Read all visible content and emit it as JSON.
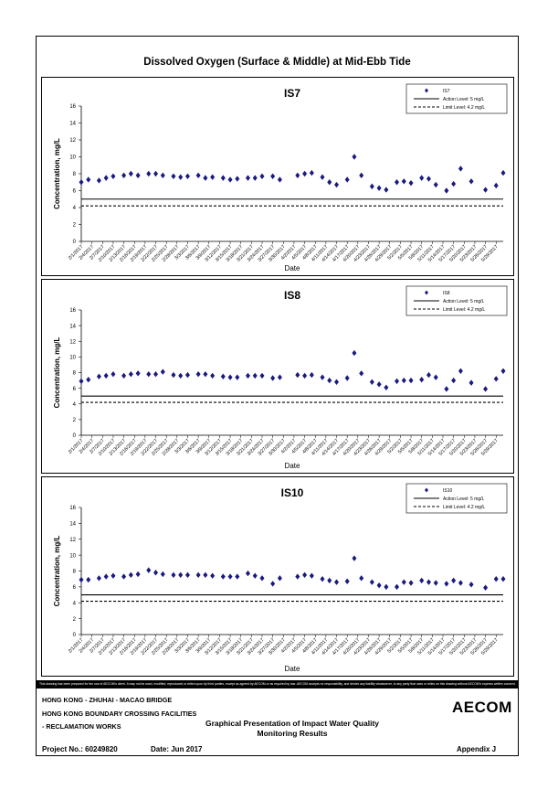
{
  "page_title": "Dissolved Oxygen (Surface & Middle) at Mid-Ebb Tide",
  "disclaimer": "This drawing has been prepared for the use of AECOM's client. It may not be used, modified, reproduced or relied upon by third parties, except as agreed by AECOM or as required by law. AECOM accepts no responsibility, and denies any liability whatsoever, to any party that uses or relies on this drawing without AECOM's express written consent.",
  "footer": {
    "line1": "HONG KONG - ZHUHAI - MACAO BRIDGE",
    "line2": "HONG KONG BOUNDARY CROSSING FACILITIES",
    "line3": "- RECLAMATION WORKS",
    "center_line1": "Graphical Presentation of Impact Water Quality",
    "center_line2": "Monitoring Results",
    "logo": "AECOM",
    "project": "Project No.: 60249820",
    "date": "Date: Jun 2017",
    "appendix": "Appendix J"
  },
  "colors": {
    "marker": "#1a1a80",
    "line": "#000000"
  },
  "chart_data": [
    {
      "type": "scatter",
      "title": "IS7",
      "xlabel": "Date",
      "ylabel": "Concentration, mg/L",
      "ylim": [
        0,
        16
      ],
      "yticks": [
        0,
        2,
        4,
        6,
        8,
        10,
        12,
        14,
        16
      ],
      "xlim": [
        "2017-02-01",
        "2017-05-31"
      ],
      "xtick_labels": [
        "2/1/2017",
        "2/4/2017",
        "2/7/2017",
        "2/10/2017",
        "2/13/2017",
        "2/16/2017",
        "2/19/2017",
        "2/22/2017",
        "2/25/2017",
        "2/28/2017",
        "3/3/2017",
        "3/6/2017",
        "3/9/2017",
        "3/12/2017",
        "3/15/2017",
        "3/18/2017",
        "3/21/2017",
        "3/24/2017",
        "3/27/2017",
        "3/30/2017",
        "4/2/2017",
        "4/5/2017",
        "4/8/2017",
        "4/11/2017",
        "4/14/2017",
        "4/17/2017",
        "4/20/2017",
        "4/23/2017",
        "4/26/2017",
        "4/29/2017",
        "5/2/2017",
        "5/5/2017",
        "5/8/2017",
        "5/11/2017",
        "5/14/2017",
        "5/17/2017",
        "5/20/2017",
        "5/23/2017",
        "5/26/2017",
        "5/29/2017"
      ],
      "series": [
        {
          "name": "IS7",
          "kind": "scatter",
          "points": [
            [
              "2017-02-01",
              7.0
            ],
            [
              "2017-02-03",
              7.3
            ],
            [
              "2017-02-06",
              7.2
            ],
            [
              "2017-02-08",
              7.5
            ],
            [
              "2017-02-10",
              7.7
            ],
            [
              "2017-02-13",
              7.8
            ],
            [
              "2017-02-15",
              8.0
            ],
            [
              "2017-02-17",
              7.8
            ],
            [
              "2017-02-20",
              8.0
            ],
            [
              "2017-02-22",
              8.0
            ],
            [
              "2017-02-24",
              7.8
            ],
            [
              "2017-02-27",
              7.7
            ],
            [
              "2017-03-01",
              7.6
            ],
            [
              "2017-03-03",
              7.7
            ],
            [
              "2017-03-06",
              7.8
            ],
            [
              "2017-03-08",
              7.5
            ],
            [
              "2017-03-10",
              7.6
            ],
            [
              "2017-03-13",
              7.5
            ],
            [
              "2017-03-15",
              7.3
            ],
            [
              "2017-03-17",
              7.4
            ],
            [
              "2017-03-20",
              7.5
            ],
            [
              "2017-03-22",
              7.5
            ],
            [
              "2017-03-24",
              7.7
            ],
            [
              "2017-03-27",
              7.7
            ],
            [
              "2017-03-29",
              7.3
            ],
            [
              "2017-04-03",
              7.8
            ],
            [
              "2017-04-05",
              8.0
            ],
            [
              "2017-04-07",
              8.1
            ],
            [
              "2017-04-10",
              7.6
            ],
            [
              "2017-04-12",
              7.0
            ],
            [
              "2017-04-14",
              6.7
            ],
            [
              "2017-04-17",
              7.3
            ],
            [
              "2017-04-19",
              10.0
            ],
            [
              "2017-04-21",
              7.8
            ],
            [
              "2017-04-24",
              6.5
            ],
            [
              "2017-04-26",
              6.3
            ],
            [
              "2017-04-28",
              6.1
            ],
            [
              "2017-05-01",
              7.0
            ],
            [
              "2017-05-03",
              7.1
            ],
            [
              "2017-05-05",
              6.9
            ],
            [
              "2017-05-08",
              7.5
            ],
            [
              "2017-05-10",
              7.4
            ],
            [
              "2017-05-12",
              6.7
            ],
            [
              "2017-05-15",
              6.0
            ],
            [
              "2017-05-17",
              6.8
            ],
            [
              "2017-05-19",
              8.6
            ],
            [
              "2017-05-22",
              7.1
            ],
            [
              "2017-05-26",
              6.1
            ],
            [
              "2017-05-29",
              6.6
            ],
            [
              "2017-05-31",
              8.1
            ]
          ]
        },
        {
          "name": "Action Level: 5 mg/L",
          "kind": "hline",
          "value": 5,
          "dash": "solid"
        },
        {
          "name": "Limit Level: 4.2 mg/L",
          "kind": "hline",
          "value": 4.2,
          "dash": "dashed"
        }
      ],
      "legend_placement": "top-right"
    },
    {
      "type": "scatter",
      "title": "IS8",
      "xlabel": "Date",
      "ylabel": "Concentration, mg/L",
      "ylim": [
        0,
        16
      ],
      "yticks": [
        0,
        2,
        4,
        6,
        8,
        10,
        12,
        14,
        16
      ],
      "xlim": [
        "2017-02-01",
        "2017-05-31"
      ],
      "xtick_labels": [
        "2/1/2017",
        "2/4/2017",
        "2/7/2017",
        "2/10/2017",
        "2/13/2017",
        "2/16/2017",
        "2/19/2017",
        "2/22/2017",
        "2/25/2017",
        "2/28/2017",
        "3/3/2017",
        "3/6/2017",
        "3/9/2017",
        "3/12/2017",
        "3/15/2017",
        "3/18/2017",
        "3/21/2017",
        "3/24/2017",
        "3/27/2017",
        "3/30/2017",
        "4/2/2017",
        "4/5/2017",
        "4/8/2017",
        "4/11/2017",
        "4/14/2017",
        "4/17/2017",
        "4/20/2017",
        "4/23/2017",
        "4/26/2017",
        "4/29/2017",
        "5/2/2017",
        "5/5/2017",
        "5/8/2017",
        "5/11/2017",
        "5/14/2017",
        "5/17/2017",
        "5/20/2017",
        "5/23/2017",
        "5/26/2017",
        "5/29/2017"
      ],
      "series": [
        {
          "name": "IS8",
          "kind": "scatter",
          "points": [
            [
              "2017-02-01",
              6.9
            ],
            [
              "2017-02-03",
              7.1
            ],
            [
              "2017-02-06",
              7.5
            ],
            [
              "2017-02-08",
              7.6
            ],
            [
              "2017-02-10",
              7.8
            ],
            [
              "2017-02-13",
              7.6
            ],
            [
              "2017-02-15",
              7.8
            ],
            [
              "2017-02-17",
              7.9
            ],
            [
              "2017-02-20",
              7.8
            ],
            [
              "2017-02-22",
              7.8
            ],
            [
              "2017-02-24",
              8.1
            ],
            [
              "2017-02-27",
              7.7
            ],
            [
              "2017-03-01",
              7.6
            ],
            [
              "2017-03-03",
              7.7
            ],
            [
              "2017-03-06",
              7.8
            ],
            [
              "2017-03-08",
              7.8
            ],
            [
              "2017-03-10",
              7.6
            ],
            [
              "2017-03-13",
              7.5
            ],
            [
              "2017-03-15",
              7.4
            ],
            [
              "2017-03-17",
              7.4
            ],
            [
              "2017-03-20",
              7.6
            ],
            [
              "2017-03-22",
              7.6
            ],
            [
              "2017-03-24",
              7.6
            ],
            [
              "2017-03-27",
              7.3
            ],
            [
              "2017-03-29",
              7.4
            ],
            [
              "2017-04-03",
              7.7
            ],
            [
              "2017-04-05",
              7.6
            ],
            [
              "2017-04-07",
              7.7
            ],
            [
              "2017-04-10",
              7.4
            ],
            [
              "2017-04-12",
              7.0
            ],
            [
              "2017-04-14",
              6.8
            ],
            [
              "2017-04-17",
              7.3
            ],
            [
              "2017-04-19",
              10.5
            ],
            [
              "2017-04-21",
              7.9
            ],
            [
              "2017-04-24",
              6.8
            ],
            [
              "2017-04-26",
              6.5
            ],
            [
              "2017-04-28",
              6.1
            ],
            [
              "2017-05-01",
              6.9
            ],
            [
              "2017-05-03",
              7.0
            ],
            [
              "2017-05-05",
              7.0
            ],
            [
              "2017-05-08",
              7.1
            ],
            [
              "2017-05-10",
              7.7
            ],
            [
              "2017-05-12",
              7.4
            ],
            [
              "2017-05-15",
              5.9
            ],
            [
              "2017-05-17",
              7.0
            ],
            [
              "2017-05-19",
              8.2
            ],
            [
              "2017-05-22",
              6.7
            ],
            [
              "2017-05-26",
              5.9
            ],
            [
              "2017-05-29",
              7.2
            ],
            [
              "2017-05-31",
              8.2
            ]
          ]
        },
        {
          "name": "Action Level: 5 mg/L",
          "kind": "hline",
          "value": 5,
          "dash": "solid"
        },
        {
          "name": "Limit Level: 4.2 mg/L",
          "kind": "hline",
          "value": 4.2,
          "dash": "dashed"
        }
      ],
      "legend_placement": "top-right"
    },
    {
      "type": "scatter",
      "title": "IS10",
      "xlabel": "Date",
      "ylabel": "Concentration, mg/L",
      "ylim": [
        0,
        16
      ],
      "yticks": [
        0,
        2,
        4,
        6,
        8,
        10,
        12,
        14,
        16
      ],
      "xlim": [
        "2017-02-01",
        "2017-05-31"
      ],
      "xtick_labels": [
        "2/1/2017",
        "2/4/2017",
        "2/7/2017",
        "2/10/2017",
        "2/13/2017",
        "2/16/2017",
        "2/19/2017",
        "2/22/2017",
        "2/25/2017",
        "2/28/2017",
        "3/3/2017",
        "3/6/2017",
        "3/9/2017",
        "3/12/2017",
        "3/15/2017",
        "3/18/2017",
        "3/21/2017",
        "3/24/2017",
        "3/27/2017",
        "3/30/2017",
        "4/2/2017",
        "4/5/2017",
        "4/8/2017",
        "4/11/2017",
        "4/14/2017",
        "4/17/2017",
        "4/20/2017",
        "4/23/2017",
        "4/26/2017",
        "4/29/2017",
        "5/2/2017",
        "5/5/2017",
        "5/8/2017",
        "5/11/2017",
        "5/14/2017",
        "5/17/2017",
        "5/20/2017",
        "5/23/2017",
        "5/26/2017",
        "5/29/2017"
      ],
      "series": [
        {
          "name": "IS10",
          "kind": "scatter",
          "points": [
            [
              "2017-02-01",
              6.9
            ],
            [
              "2017-02-03",
              6.9
            ],
            [
              "2017-02-06",
              7.1
            ],
            [
              "2017-02-08",
              7.3
            ],
            [
              "2017-02-10",
              7.4
            ],
            [
              "2017-02-13",
              7.3
            ],
            [
              "2017-02-15",
              7.5
            ],
            [
              "2017-02-17",
              7.6
            ],
            [
              "2017-02-20",
              8.1
            ],
            [
              "2017-02-22",
              7.8
            ],
            [
              "2017-02-24",
              7.6
            ],
            [
              "2017-02-27",
              7.5
            ],
            [
              "2017-03-01",
              7.5
            ],
            [
              "2017-03-03",
              7.5
            ],
            [
              "2017-03-06",
              7.5
            ],
            [
              "2017-03-08",
              7.5
            ],
            [
              "2017-03-10",
              7.4
            ],
            [
              "2017-03-13",
              7.3
            ],
            [
              "2017-03-15",
              7.3
            ],
            [
              "2017-03-17",
              7.3
            ],
            [
              "2017-03-20",
              7.7
            ],
            [
              "2017-03-22",
              7.4
            ],
            [
              "2017-03-24",
              7.1
            ],
            [
              "2017-03-27",
              6.4
            ],
            [
              "2017-03-29",
              7.1
            ],
            [
              "2017-04-03",
              7.3
            ],
            [
              "2017-04-05",
              7.5
            ],
            [
              "2017-04-07",
              7.4
            ],
            [
              "2017-04-10",
              7.0
            ],
            [
              "2017-04-12",
              6.8
            ],
            [
              "2017-04-14",
              6.6
            ],
            [
              "2017-04-17",
              6.7
            ],
            [
              "2017-04-19",
              9.6
            ],
            [
              "2017-04-21",
              7.1
            ],
            [
              "2017-04-24",
              6.6
            ],
            [
              "2017-04-26",
              6.2
            ],
            [
              "2017-04-28",
              6.0
            ],
            [
              "2017-05-01",
              6.0
            ],
            [
              "2017-05-03",
              6.6
            ],
            [
              "2017-05-05",
              6.5
            ],
            [
              "2017-05-08",
              6.8
            ],
            [
              "2017-05-10",
              6.6
            ],
            [
              "2017-05-12",
              6.5
            ],
            [
              "2017-05-15",
              6.4
            ],
            [
              "2017-05-17",
              6.8
            ],
            [
              "2017-05-19",
              6.5
            ],
            [
              "2017-05-22",
              6.3
            ],
            [
              "2017-05-26",
              5.9
            ],
            [
              "2017-05-29",
              7.0
            ],
            [
              "2017-05-31",
              7.0
            ]
          ]
        },
        {
          "name": "Action Level: 5 mg/L",
          "kind": "hline",
          "value": 5,
          "dash": "solid"
        },
        {
          "name": "Limit Level: 4.2 mg/L",
          "kind": "hline",
          "value": 4.2,
          "dash": "dashed"
        }
      ],
      "legend_placement": "top-right"
    }
  ]
}
